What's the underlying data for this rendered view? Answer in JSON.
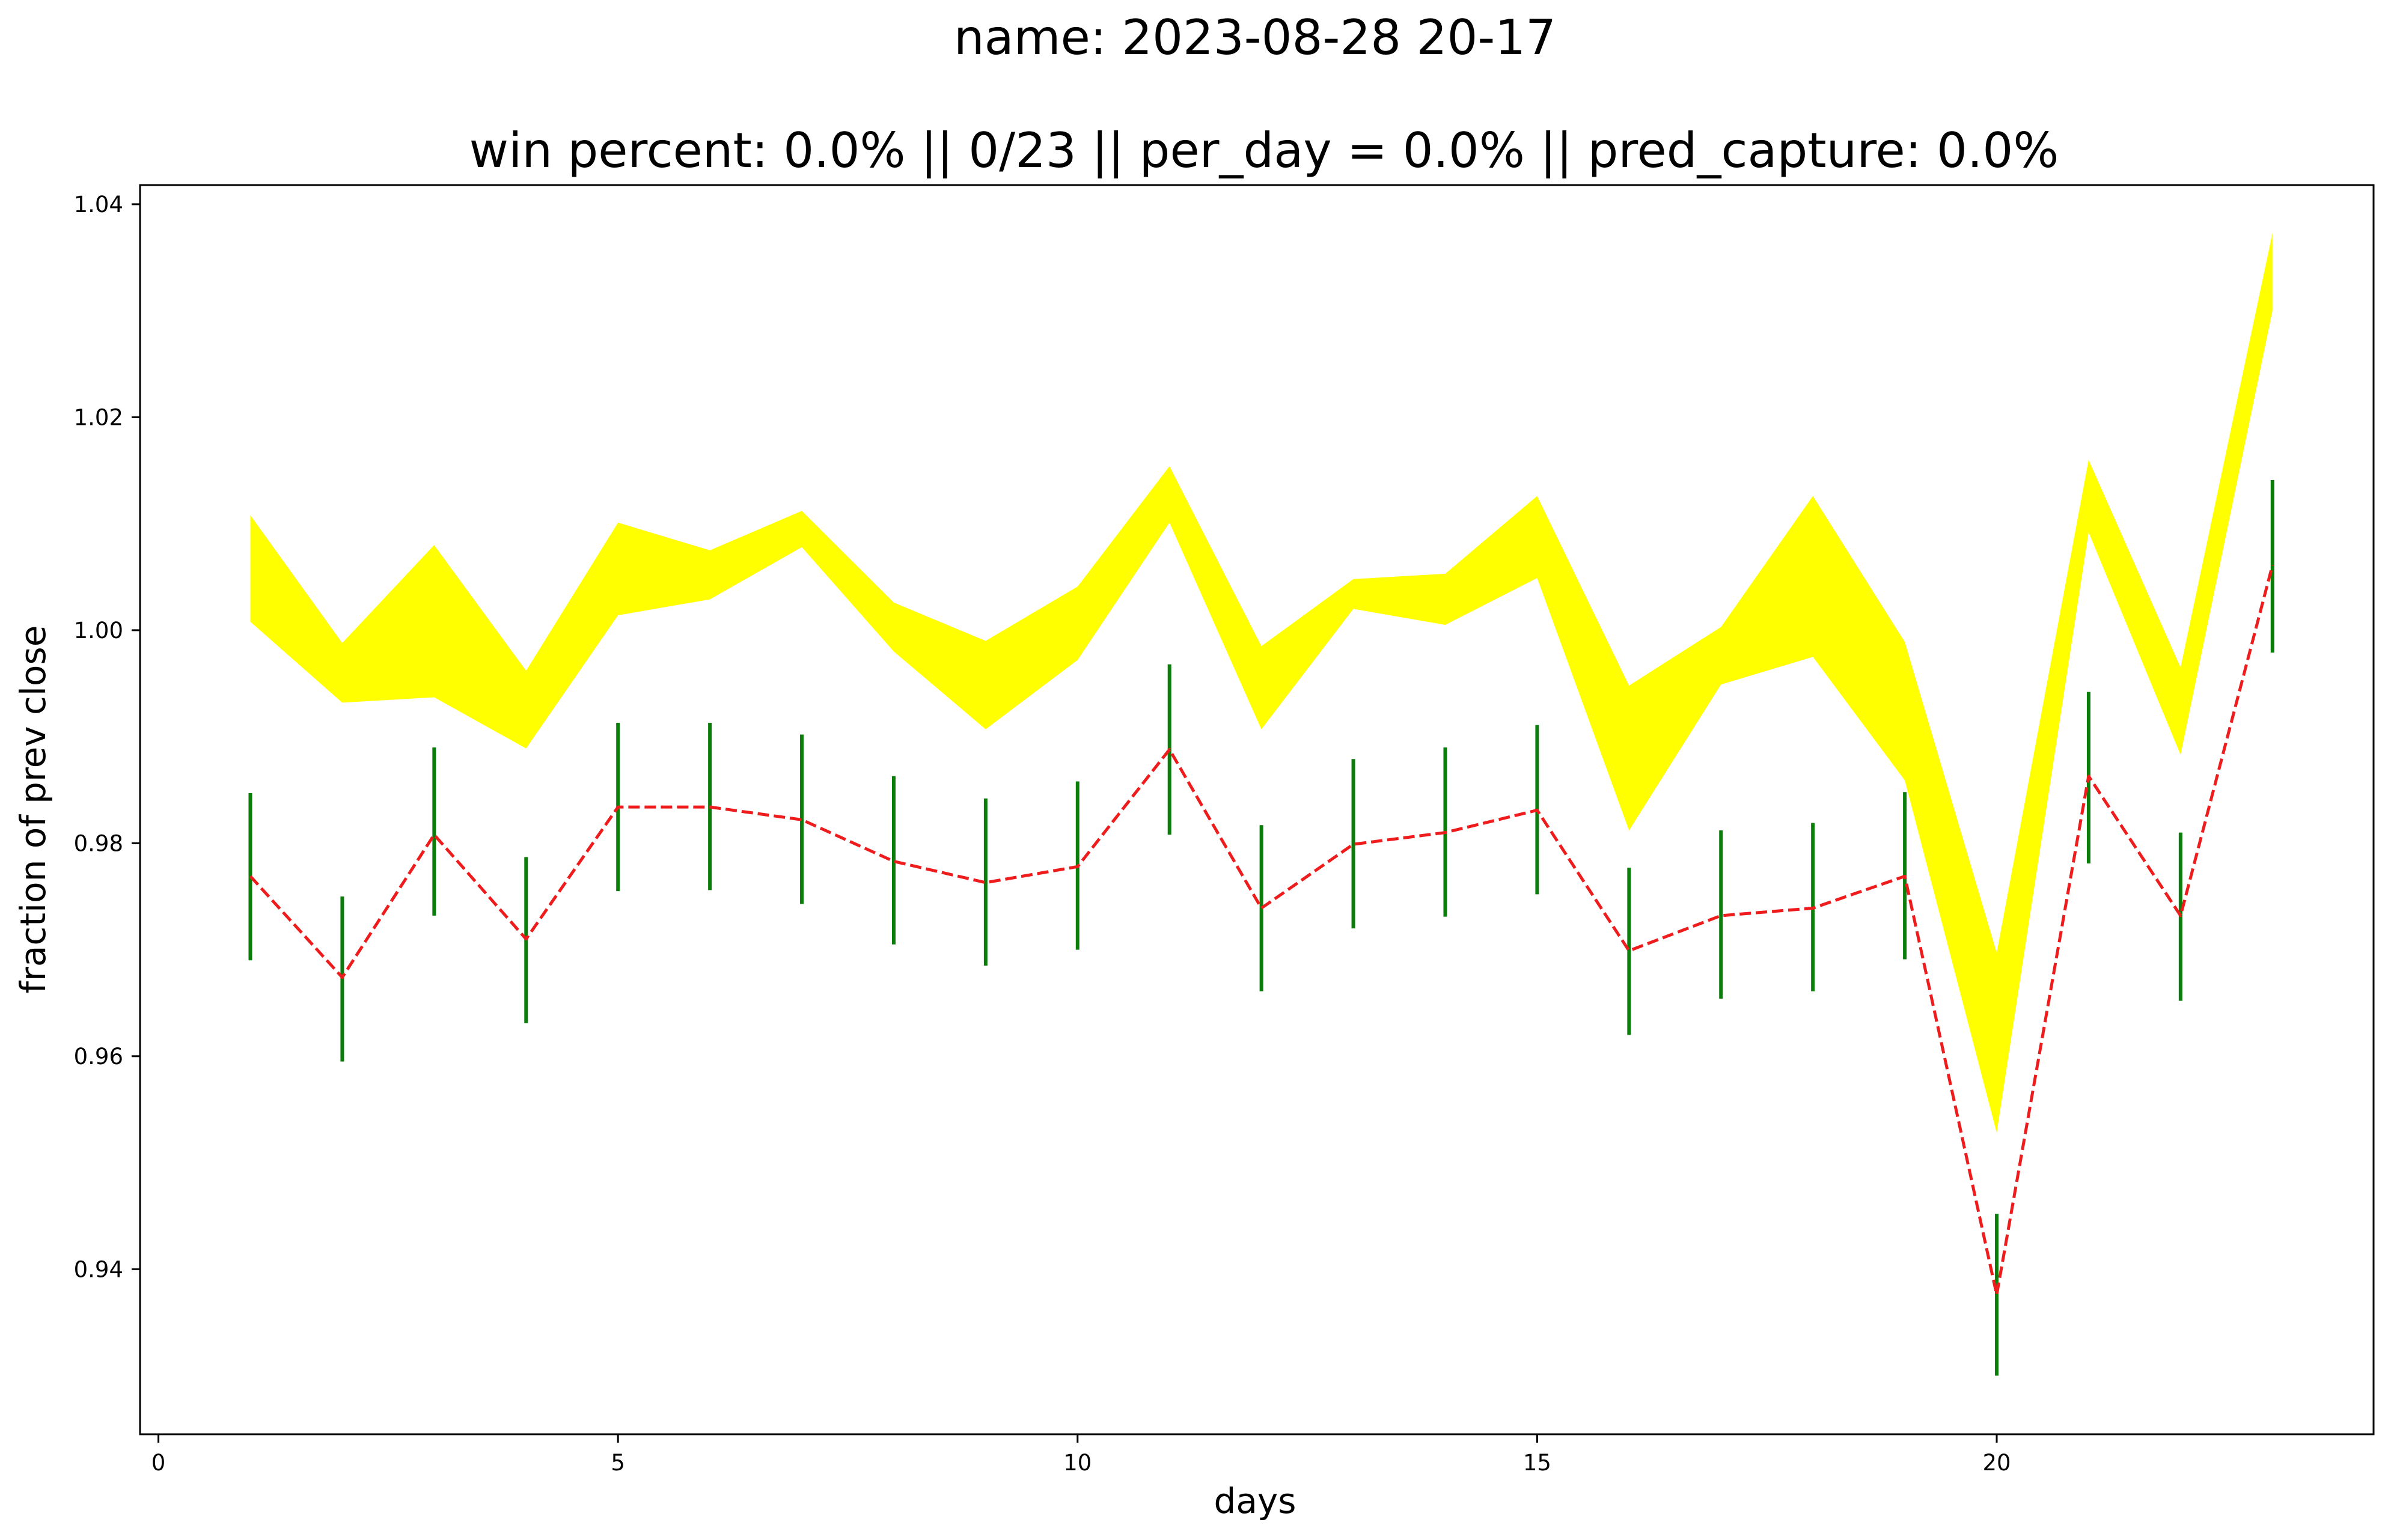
{
  "chart_data": {
    "type": "line",
    "title": "name: 2023-08-28 20-17",
    "subtitle": "win percent: 0.0%   ||  0/23  || per_day = 0.0% || pred_capture: 0.0%",
    "xlabel": "days",
    "ylabel": "fraction of prev close",
    "xlim": [
      -0.2,
      24.1
    ],
    "ylim": [
      0.9245,
      1.0418
    ],
    "x_ticks": [
      0,
      5,
      10,
      15,
      20
    ],
    "y_ticks": [
      0.94,
      0.96,
      0.98,
      1.0,
      1.02,
      1.04
    ],
    "y_tick_labels": [
      "0.94",
      "0.96",
      "0.98",
      "1.00",
      "1.02",
      "1.04"
    ],
    "grid": false,
    "colors": {
      "band": "#ffff00",
      "dashed_line": "#ee1c1c",
      "range_bars": "#0a7d0a"
    },
    "x": [
      1,
      2,
      3,
      4,
      5,
      6,
      7,
      8,
      9,
      10,
      11,
      12,
      13,
      14,
      15,
      16,
      17,
      18,
      19,
      20,
      21,
      22,
      23
    ],
    "band_upper": [
      1.0108,
      0.9988,
      1.008,
      0.9962,
      1.0101,
      1.0075,
      1.0112,
      1.0026,
      0.999,
      1.0041,
      1.0154,
      0.9985,
      1.0048,
      1.0053,
      1.0126,
      0.9948,
      1.0003,
      1.0126,
      0.9989,
      0.9697,
      1.016,
      0.9965,
      1.0373
    ],
    "band_lower": [
      1.0008,
      0.9932,
      0.9937,
      0.9889,
      1.0014,
      1.0029,
      1.0078,
      0.998,
      0.9907,
      0.9972,
      1.0101,
      0.9907,
      1.002,
      1.0005,
      1.0049,
      0.9812,
      0.9949,
      0.9975,
      0.9859,
      0.9528,
      1.0092,
      0.9883,
      1.03
    ],
    "series": [
      {
        "values": [
          0.9769,
          0.9674,
          0.9808,
          0.971,
          0.9834,
          0.9834,
          0.9822,
          0.9783,
          0.9763,
          0.9778,
          0.9888,
          0.9739,
          0.9799,
          0.981,
          0.9831,
          0.9699,
          0.9732,
          0.9739,
          0.9769,
          0.9376,
          0.9863,
          0.9732,
          1.0061
        ]
      }
    ],
    "range_high": [
      0.9847,
      0.975,
      0.989,
      0.9787,
      0.9913,
      0.9913,
      0.9902,
      0.9863,
      0.9842,
      0.9858,
      0.9968,
      0.9817,
      0.9879,
      0.989,
      0.9911,
      0.9777,
      0.9812,
      0.9819,
      0.9848,
      0.9452,
      0.9942,
      0.981,
      1.0141
    ],
    "range_low": [
      0.969,
      0.9595,
      0.9732,
      0.9631,
      0.9755,
      0.9756,
      0.9743,
      0.9705,
      0.9685,
      0.97,
      0.9808,
      0.9661,
      0.972,
      0.9731,
      0.9752,
      0.962,
      0.9654,
      0.9661,
      0.9691,
      0.93,
      0.9781,
      0.9652,
      0.9979
    ]
  }
}
